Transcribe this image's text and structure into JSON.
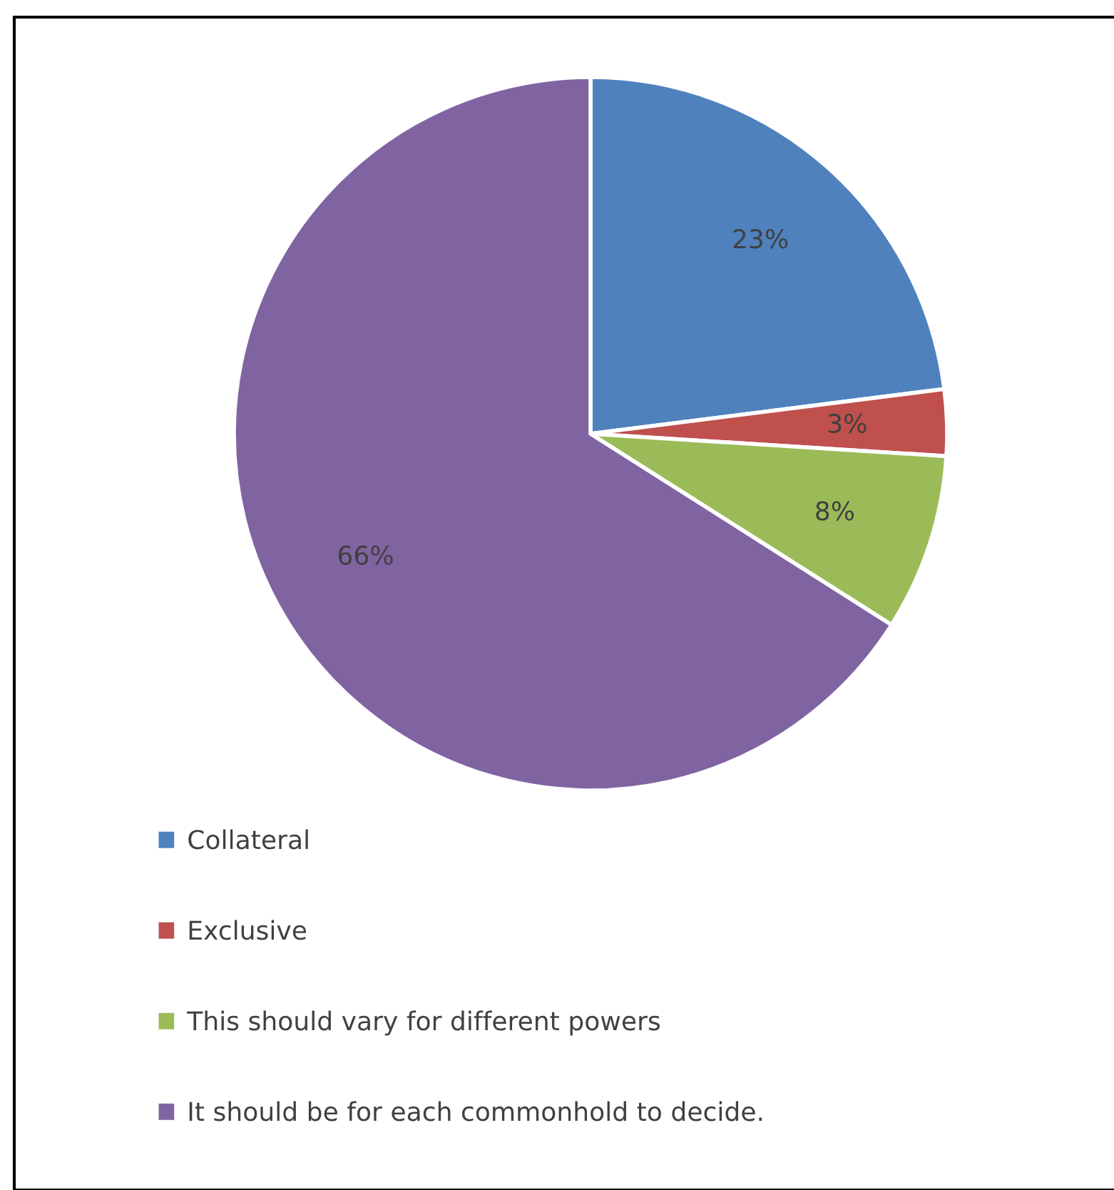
{
  "chart_data": {
    "type": "pie",
    "categories": [
      "Collateral",
      "Exclusive",
      "This should vary for different powers",
      "It should be for each commonhold to decide."
    ],
    "values": [
      23,
      3,
      8,
      66
    ],
    "colors": [
      "#4f81bd",
      "#c0504d",
      "#9bbb59",
      "#8064a2"
    ],
    "value_labels": [
      "23%",
      "3%",
      "8%",
      "66%"
    ],
    "legend": "bottom"
  }
}
